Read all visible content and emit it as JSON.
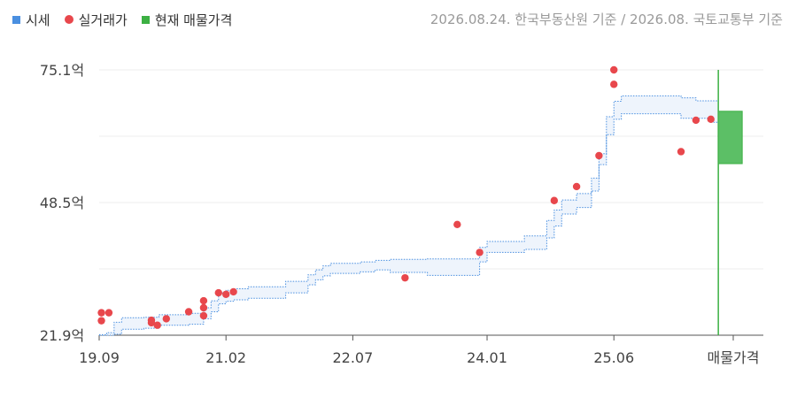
{
  "legend": {
    "items": [
      {
        "label": "시세",
        "shape": "square",
        "color": "#4a8fe0"
      },
      {
        "label": "실거래가",
        "shape": "dot",
        "color": "#e8474c"
      },
      {
        "label": "현재 매물가격",
        "shape": "square",
        "color": "#3cb043"
      }
    ]
  },
  "basis_text": "2026.08.24. 한국부동산원 기준 / 2026.08. 국토교통부 기준",
  "chart_data": {
    "type": "scatter",
    "title": "",
    "xlabel": "",
    "ylabel": "",
    "x_unit": "month index (0 = 2019.09)",
    "xlim": [
      0,
      85
    ],
    "ylim": [
      21.9,
      75.1
    ],
    "yticks": [
      {
        "value": 21.9,
        "label": "21.9억"
      },
      {
        "value": 48.5,
        "label": "48.5억"
      },
      {
        "value": 75.1,
        "label": "75.1억"
      }
    ],
    "xticks": [
      {
        "value": 0,
        "label": "19.09"
      },
      {
        "value": 17,
        "label": "21.02"
      },
      {
        "value": 34,
        "label": "22.07"
      },
      {
        "value": 52,
        "label": "24.01"
      },
      {
        "value": 69,
        "label": "25.06"
      },
      {
        "value": 85,
        "label": "매물가격"
      }
    ],
    "grid": true,
    "series": [
      {
        "name": "시세",
        "kind": "band",
        "color": "#4a8fe0",
        "fill": "#eef4fc",
        "steps": [
          {
            "x": 0,
            "low": 21.9,
            "high": 22.0
          },
          {
            "x": 1,
            "low": 21.9,
            "high": 22.4
          },
          {
            "x": 2,
            "low": 22.1,
            "high": 24.5
          },
          {
            "x": 3,
            "low": 23.1,
            "high": 25.4
          },
          {
            "x": 6,
            "low": 23.3,
            "high": 25.5
          },
          {
            "x": 8,
            "low": 23.9,
            "high": 26.0
          },
          {
            "x": 12,
            "low": 24.1,
            "high": 26.3
          },
          {
            "x": 14,
            "low": 25.2,
            "high": 27.4
          },
          {
            "x": 15,
            "low": 26.6,
            "high": 28.8
          },
          {
            "x": 16,
            "low": 28.2,
            "high": 30.4
          },
          {
            "x": 17,
            "low": 28.7,
            "high": 30.9
          },
          {
            "x": 18,
            "low": 29.0,
            "high": 31.2
          },
          {
            "x": 20,
            "low": 29.3,
            "high": 31.6
          },
          {
            "x": 25,
            "low": 30.4,
            "high": 32.7
          },
          {
            "x": 28,
            "low": 32.0,
            "high": 34.0
          },
          {
            "x": 29,
            "low": 33.0,
            "high": 35.0
          },
          {
            "x": 30,
            "low": 33.8,
            "high": 35.8
          },
          {
            "x": 31,
            "low": 34.3,
            "high": 36.3
          },
          {
            "x": 35,
            "low": 34.6,
            "high": 36.6
          },
          {
            "x": 37,
            "low": 35.0,
            "high": 36.9
          },
          {
            "x": 39,
            "low": 34.5,
            "high": 37.1
          },
          {
            "x": 44,
            "low": 33.9,
            "high": 37.2
          },
          {
            "x": 51,
            "low": 36.6,
            "high": 39.5
          },
          {
            "x": 52,
            "low": 38.5,
            "high": 40.7
          },
          {
            "x": 57,
            "low": 39.1,
            "high": 41.8
          },
          {
            "x": 60,
            "low": 41.4,
            "high": 44.9
          },
          {
            "x": 61,
            "low": 43.8,
            "high": 47.0
          },
          {
            "x": 62,
            "low": 46.2,
            "high": 49.0
          },
          {
            "x": 64,
            "low": 47.5,
            "high": 50.3
          },
          {
            "x": 66,
            "low": 50.8,
            "high": 53.4
          },
          {
            "x": 67,
            "low": 56.1,
            "high": 58.3
          },
          {
            "x": 68,
            "low": 62.1,
            "high": 65.7
          },
          {
            "x": 69,
            "low": 65.2,
            "high": 68.8
          },
          {
            "x": 70,
            "low": 66.3,
            "high": 69.9
          },
          {
            "x": 78,
            "low": 65.4,
            "high": 69.5
          },
          {
            "x": 80,
            "low": 65.4,
            "high": 68.9
          },
          {
            "x": 82,
            "low": 64.6,
            "high": 68.9
          },
          {
            "x": 83,
            "low": 64.6,
            "high": 68.9
          }
        ]
      },
      {
        "name": "실거래가",
        "kind": "points",
        "color": "#e8474c",
        "points": [
          {
            "x": 0.3,
            "y": 26.4
          },
          {
            "x": 0.3,
            "y": 24.8
          },
          {
            "x": 1.3,
            "y": 26.4
          },
          {
            "x": 7.0,
            "y": 24.9
          },
          {
            "x": 7.0,
            "y": 24.4
          },
          {
            "x": 7.8,
            "y": 23.9
          },
          {
            "x": 9.0,
            "y": 25.2
          },
          {
            "x": 12.0,
            "y": 26.6
          },
          {
            "x": 14.0,
            "y": 28.8
          },
          {
            "x": 14.0,
            "y": 27.4
          },
          {
            "x": 14.0,
            "y": 25.8
          },
          {
            "x": 16.0,
            "y": 30.4
          },
          {
            "x": 17.0,
            "y": 30.1
          },
          {
            "x": 18.0,
            "y": 30.6
          },
          {
            "x": 41.0,
            "y": 33.4
          },
          {
            "x": 48.0,
            "y": 44.1
          },
          {
            "x": 51.0,
            "y": 38.5
          },
          {
            "x": 61.0,
            "y": 48.9
          },
          {
            "x": 64.0,
            "y": 51.7
          },
          {
            "x": 67.0,
            "y": 57.9
          },
          {
            "x": 69.0,
            "y": 75.1
          },
          {
            "x": 69.0,
            "y": 72.2
          },
          {
            "x": 78.0,
            "y": 58.7
          },
          {
            "x": 80.0,
            "y": 65.0
          },
          {
            "x": 82.0,
            "y": 65.2
          }
        ]
      },
      {
        "name": "현재 매물가격",
        "kind": "range",
        "color": "#3cb043",
        "fill": "#5cbf66",
        "x": 83,
        "low": 56.3,
        "high": 66.8
      }
    ]
  }
}
